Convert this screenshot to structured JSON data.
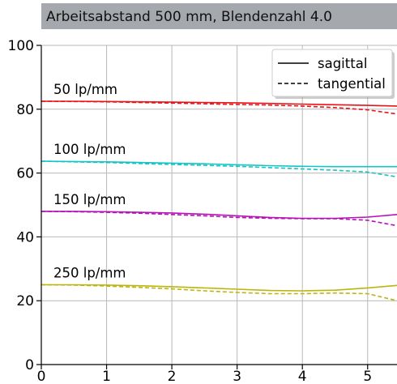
{
  "chart_data": {
    "type": "line",
    "title": "Arbeitsabstand 500 mm, Blendenzahl 4.0",
    "xlim": [
      0,
      5.45
    ],
    "ylim": [
      0,
      100
    ],
    "xticks": [
      "0",
      "1",
      "2",
      "3",
      "4",
      "5"
    ],
    "yticks": [
      "0",
      "20",
      "40",
      "60",
      "80",
      "100"
    ],
    "grid": true,
    "legend": {
      "placement": "top-right",
      "entries": [
        {
          "label": "sagittal",
          "style": "solid"
        },
        {
          "label": "tangential",
          "style": "dashed"
        }
      ]
    },
    "series": [
      {
        "name": "50 lp/mm",
        "color": "#e8141a",
        "x": [
          0,
          0.5,
          1,
          1.5,
          2,
          2.5,
          3,
          3.5,
          4,
          4.5,
          5,
          5.45
        ],
        "sagittal": [
          82.5,
          82.5,
          82.4,
          82.3,
          82.2,
          82.1,
          82.0,
          81.8,
          81.6,
          81.4,
          81.2,
          81.0
        ],
        "tangential": [
          82.5,
          82.4,
          82.3,
          82.1,
          81.9,
          81.7,
          81.5,
          81.3,
          81.0,
          80.5,
          79.8,
          78.5
        ]
      },
      {
        "name": "100 lp/mm",
        "color": "#12c4c4",
        "x": [
          0,
          0.5,
          1,
          1.5,
          2,
          2.5,
          3,
          3.5,
          4,
          4.5,
          5,
          5.45
        ],
        "sagittal": [
          63.7,
          63.6,
          63.5,
          63.3,
          63.1,
          62.9,
          62.6,
          62.3,
          62.1,
          62.0,
          62.0,
          62.0
        ],
        "tangential": [
          63.7,
          63.5,
          63.3,
          63.0,
          62.7,
          62.4,
          62.1,
          61.7,
          61.3,
          60.9,
          60.3,
          58.8
        ]
      },
      {
        "name": "150 lp/mm",
        "color": "#b512b8",
        "x": [
          0,
          0.5,
          1,
          1.5,
          2,
          2.5,
          3,
          3.5,
          4,
          4.5,
          5,
          5.45
        ],
        "sagittal": [
          48.0,
          48.0,
          47.9,
          47.7,
          47.5,
          47.1,
          46.6,
          46.1,
          45.8,
          45.8,
          46.2,
          47.0
        ],
        "tangential": [
          48.0,
          47.9,
          47.7,
          47.4,
          47.0,
          46.6,
          46.1,
          45.8,
          45.7,
          45.7,
          45.2,
          43.5
        ]
      },
      {
        "name": "250 lp/mm",
        "color": "#bcb510",
        "x": [
          0,
          0.5,
          1,
          1.5,
          2,
          2.5,
          3,
          3.5,
          4,
          4.5,
          5,
          5.45
        ],
        "sagittal": [
          25.0,
          25.0,
          24.9,
          24.7,
          24.4,
          24.0,
          23.6,
          23.2,
          23.1,
          23.3,
          24.0,
          24.8
        ],
        "tangential": [
          25.0,
          24.9,
          24.6,
          24.2,
          23.7,
          23.1,
          22.6,
          22.2,
          22.2,
          22.4,
          22.2,
          20.0
        ]
      }
    ]
  }
}
